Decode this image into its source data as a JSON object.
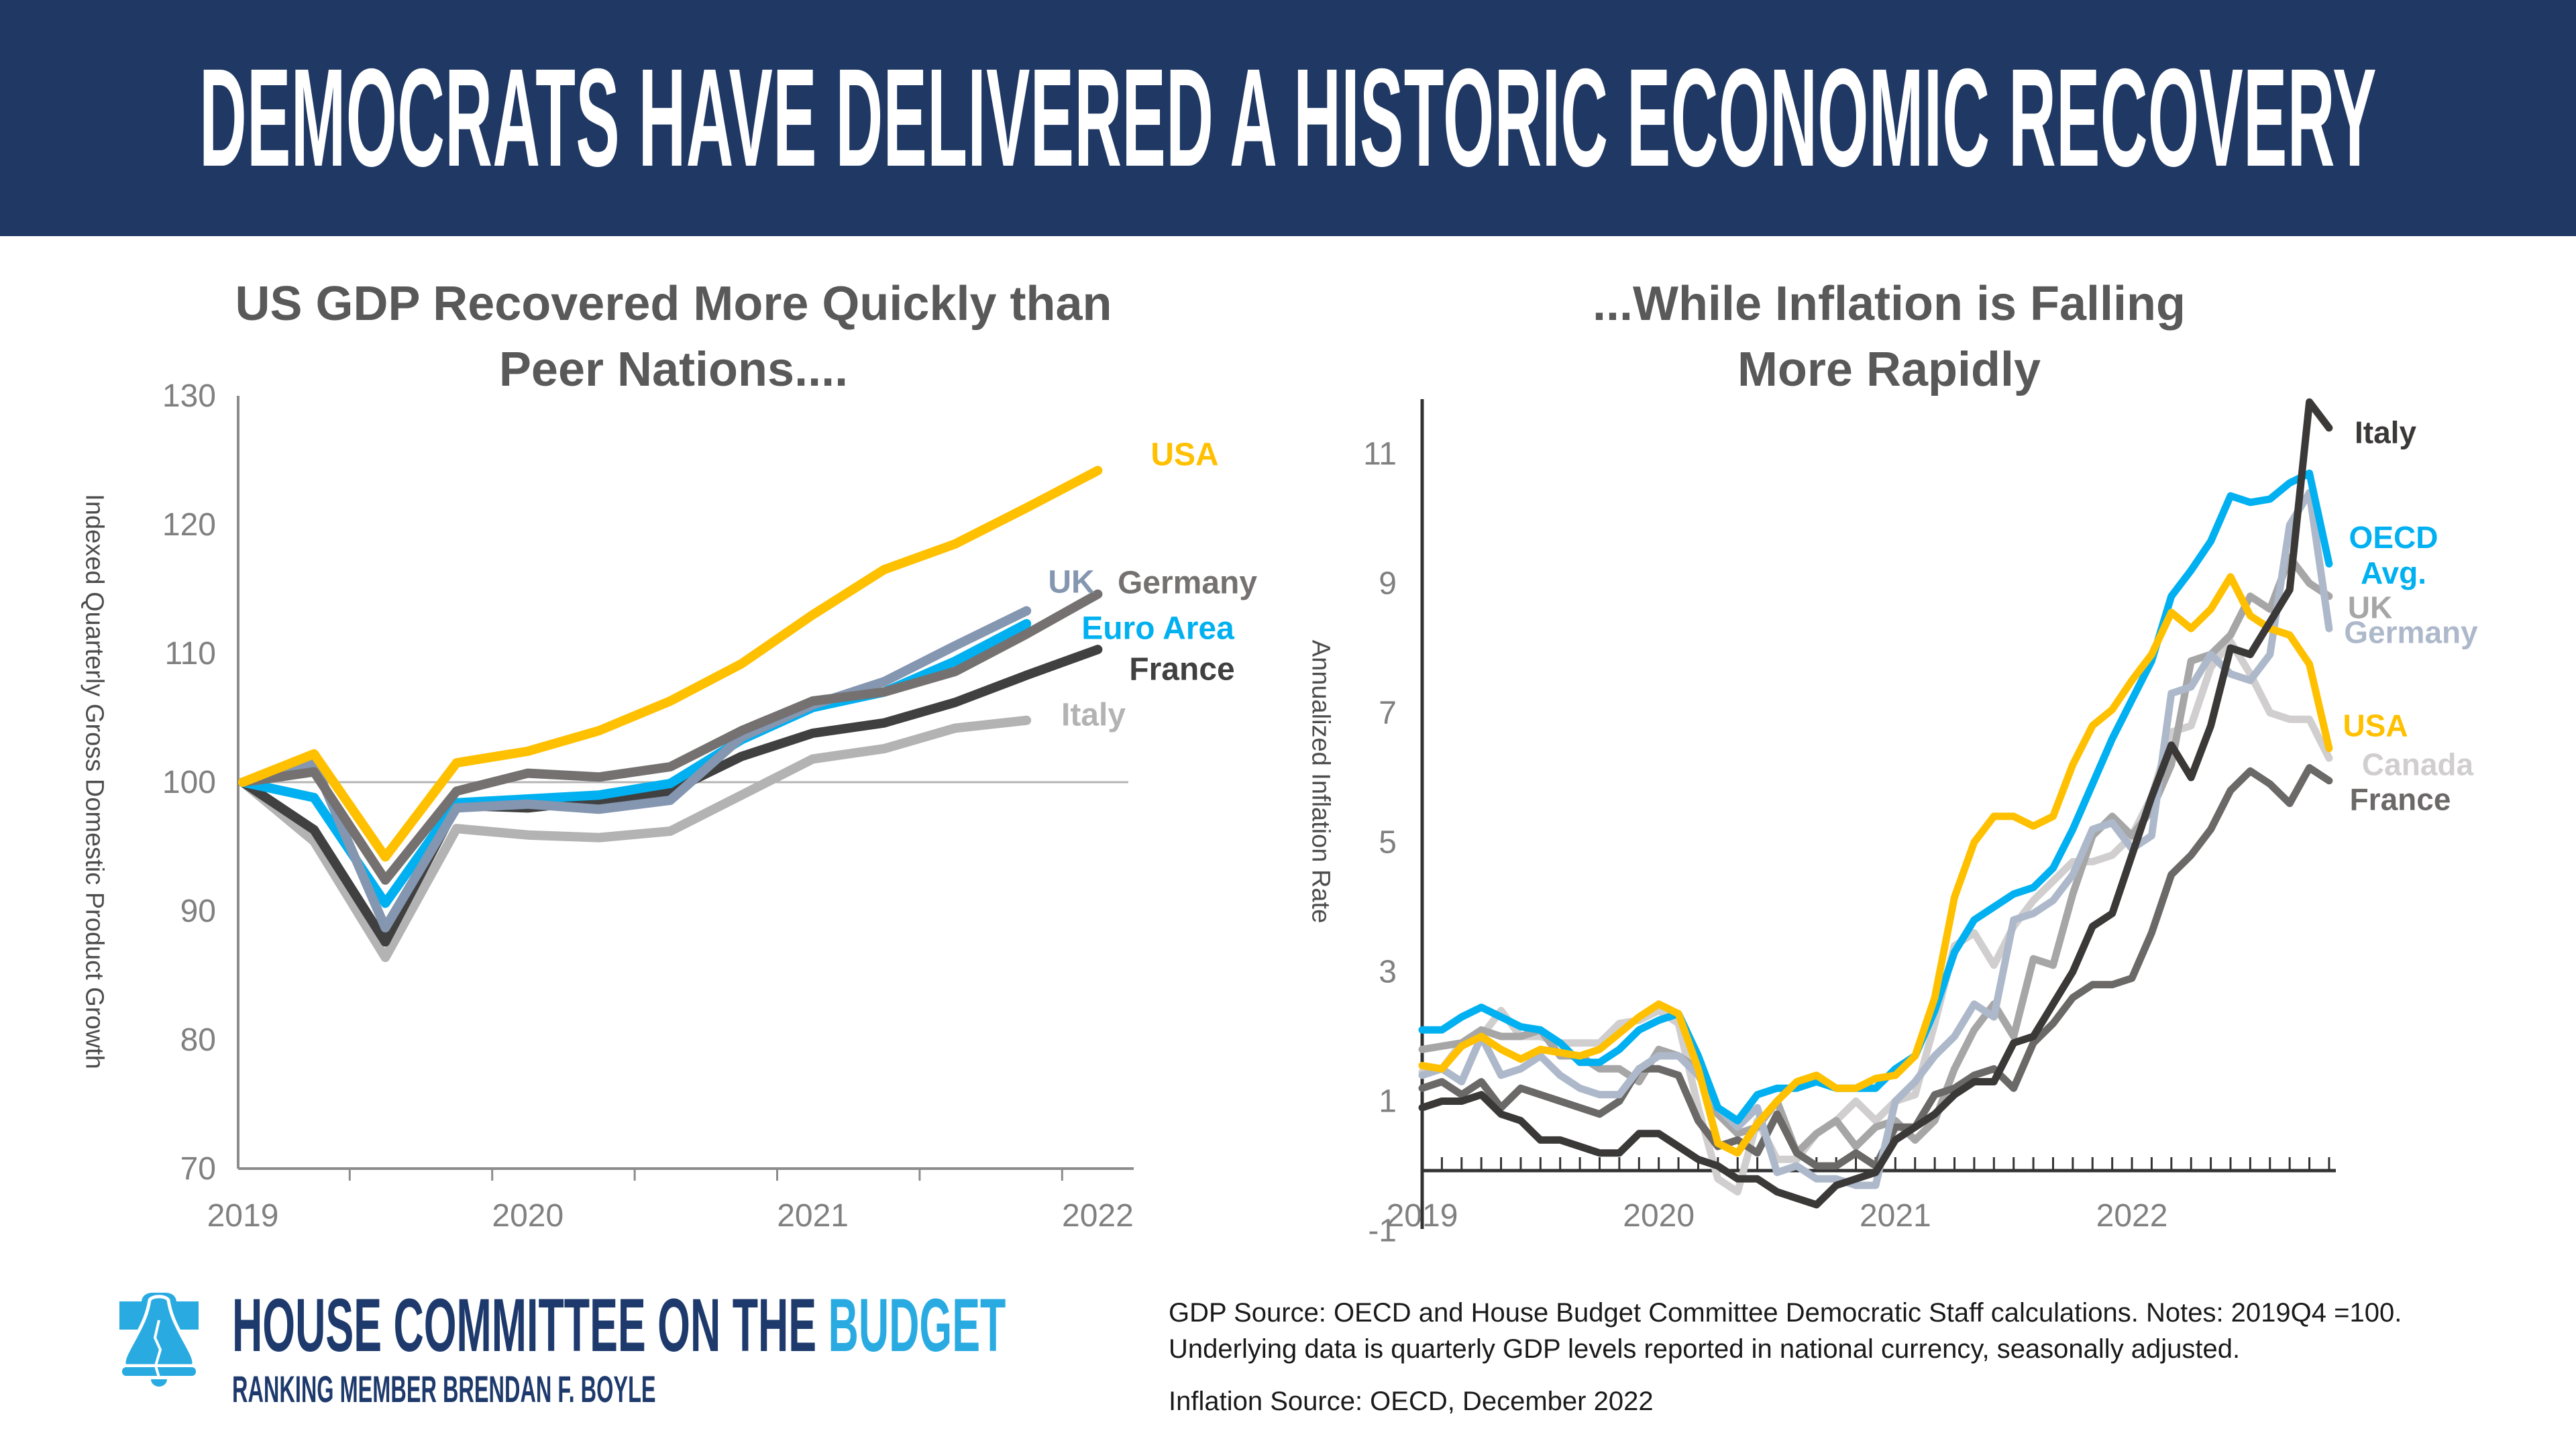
{
  "header": {
    "title": "DEMOCRATS HAVE DELIVERED A HISTORIC ECONOMIC RECOVERY"
  },
  "colors": {
    "banner_bg": "#1F3864",
    "accent_blue": "#29ABE2",
    "navy_text": "#1E3A6D",
    "title_gray": "#595959",
    "axis_gray_left_chart": "#8C8C8C",
    "axis_dark_right_chart": "#333333",
    "tick_label_gray": "#808080",
    "gridline_gray": "#B5B5B5"
  },
  "chart_data": [
    {
      "type": "line",
      "id": "gdp",
      "title": "US GDP Recovered More Quickly than Peer Nations....",
      "title_line1": "US GDP Recovered More Quickly than",
      "title_line2": "Peer Nations....",
      "xlabel": "",
      "ylabel": "Indexed Quarterly Gross Domestic Product Growth",
      "x_tick_labels": [
        "2019",
        "2020",
        "2021",
        "2022"
      ],
      "y_ticks": [
        70,
        80,
        90,
        100,
        110,
        120,
        130
      ],
      "ylim": [
        70,
        130
      ],
      "baseline": 100,
      "grid": "baseline-only",
      "legend_position": "end-of-line",
      "x": [
        "2019Q4",
        "2020Q1",
        "2020Q2",
        "2020Q3",
        "2020Q4",
        "2021Q1",
        "2021Q2",
        "2021Q3",
        "2021Q4",
        "2022Q1",
        "2022Q2",
        "2022Q3",
        "2022Q4"
      ],
      "series": [
        {
          "name": "Italy",
          "color": "#B3B3B3",
          "values": [
            100,
            95.4,
            86.4,
            96.4,
            95.9,
            95.7,
            96.2,
            99.0,
            101.8,
            102.6,
            104.2,
            104.8
          ]
        },
        {
          "name": "France",
          "color": "#404040",
          "values": [
            100,
            96.3,
            87.6,
            98.2,
            98.0,
            98.6,
            99.3,
            102.0,
            103.8,
            104.6,
            106.2,
            108.3,
            110.3
          ]
        },
        {
          "name": "Euro Area",
          "color": "#00B0F0",
          "values": [
            100,
            98.8,
            90.6,
            98.4,
            98.7,
            99.0,
            99.9,
            103.3,
            105.8,
            107.0,
            109.4,
            112.3
          ]
        },
        {
          "name": "UK",
          "color": "#8496B0",
          "values": [
            100,
            101.5,
            88.7,
            98.0,
            98.3,
            97.9,
            98.6,
            103.5,
            106.0,
            107.8,
            110.6,
            113.3
          ]
        },
        {
          "name": "Germany",
          "color": "#757171",
          "values": [
            100,
            100.8,
            92.4,
            99.3,
            100.7,
            100.4,
            101.2,
            104.0,
            106.3,
            107.0,
            108.6,
            111.5,
            114.6
          ]
        },
        {
          "name": "USA",
          "color": "#FFC000",
          "values": [
            100,
            102.2,
            94.2,
            101.5,
            102.4,
            104.0,
            106.3,
            109.2,
            113.0,
            116.5,
            118.5,
            121.3,
            124.2
          ]
        }
      ]
    },
    {
      "type": "line",
      "id": "inflation",
      "title": "...While Inflation is Falling More Rapidly",
      "title_line1": "...While Inflation is Falling",
      "title_line2": "More Rapidly",
      "xlabel": "",
      "ylabel": "Annualized Inflation Rate",
      "x_tick_labels": [
        "2019",
        "2020",
        "2021",
        "2022"
      ],
      "y_ticks": [
        -1,
        1,
        3,
        5,
        7,
        9,
        11
      ],
      "ylim": [
        -1,
        12
      ],
      "grid": "off",
      "legend_position": "end-of-line",
      "x": [
        "2019-01",
        "2019-02",
        "2019-03",
        "2019-04",
        "2019-05",
        "2019-06",
        "2019-07",
        "2019-08",
        "2019-09",
        "2019-10",
        "2019-11",
        "2019-12",
        "2020-01",
        "2020-02",
        "2020-03",
        "2020-04",
        "2020-05",
        "2020-06",
        "2020-07",
        "2020-08",
        "2020-09",
        "2020-10",
        "2020-11",
        "2020-12",
        "2021-01",
        "2021-02",
        "2021-03",
        "2021-04",
        "2021-05",
        "2021-06",
        "2021-07",
        "2021-08",
        "2021-09",
        "2021-10",
        "2021-11",
        "2021-12",
        "2022-01",
        "2022-02",
        "2022-03",
        "2022-04",
        "2022-05",
        "2022-06",
        "2022-07",
        "2022-08",
        "2022-09",
        "2022-10",
        "2022-11"
      ],
      "series": [
        {
          "name": "Canada",
          "color": "#D0CECE",
          "values": [
            1.45,
            1.5,
            1.9,
            2.0,
            2.4,
            2.0,
            2.0,
            1.9,
            1.9,
            1.9,
            2.2,
            2.25,
            2.4,
            2.2,
            0.9,
            -0.2,
            -0.4,
            0.7,
            0.1,
            0.1,
            0.5,
            0.7,
            1.0,
            0.7,
            1.0,
            1.1,
            2.2,
            3.4,
            3.6,
            3.1,
            3.7,
            4.1,
            4.4,
            4.7,
            4.7,
            4.8,
            5.1,
            5.7,
            6.7,
            6.8,
            7.7,
            8.1,
            7.6,
            7.0,
            6.9,
            6.9,
            6.3
          ]
        },
        {
          "name": "UK",
          "color": "#A6A6A6",
          "values": [
            1.8,
            1.85,
            1.9,
            2.1,
            2.0,
            2.0,
            2.1,
            1.7,
            1.7,
            1.5,
            1.5,
            1.3,
            1.8,
            1.7,
            1.5,
            0.8,
            0.5,
            0.6,
            1.0,
            0.2,
            0.5,
            0.7,
            0.3,
            0.6,
            0.7,
            0.4,
            0.7,
            1.5,
            2.1,
            2.5,
            2.0,
            3.2,
            3.1,
            4.2,
            5.1,
            5.4,
            5.1,
            5.5,
            6.2,
            7.8,
            7.9,
            8.2,
            8.8,
            8.6,
            9.4,
            9.0,
            8.8
          ]
        },
        {
          "name": "France",
          "color": "#6B6868",
          "values": [
            1.2,
            1.3,
            1.1,
            1.3,
            0.9,
            1.2,
            1.1,
            1.0,
            0.9,
            0.8,
            1.0,
            1.5,
            1.5,
            1.4,
            0.7,
            0.3,
            0.4,
            0.2,
            0.8,
            0.2,
            0.0,
            0.0,
            0.2,
            0.0,
            0.6,
            0.6,
            1.1,
            1.2,
            1.4,
            1.5,
            1.2,
            1.9,
            2.2,
            2.6,
            2.8,
            2.8,
            2.9,
            3.6,
            4.5,
            4.8,
            5.2,
            5.8,
            6.1,
            5.9,
            5.6,
            6.15,
            5.95
          ]
        },
        {
          "name": "Germany",
          "color": "#ADB9CA",
          "values": [
            1.4,
            1.5,
            1.3,
            2.0,
            1.4,
            1.5,
            1.7,
            1.4,
            1.2,
            1.1,
            1.1,
            1.5,
            1.7,
            1.7,
            1.4,
            0.9,
            0.6,
            0.9,
            -0.1,
            0.0,
            -0.2,
            -0.2,
            -0.3,
            -0.3,
            1.0,
            1.3,
            1.7,
            2.0,
            2.5,
            2.3,
            3.8,
            3.9,
            4.1,
            4.5,
            5.2,
            5.3,
            4.9,
            5.1,
            7.3,
            7.4,
            7.9,
            7.6,
            7.5,
            7.9,
            9.9,
            10.4,
            8.3
          ]
        },
        {
          "name": "OECD Avg.",
          "color": "#00B0F0",
          "label_lines": [
            "OECD",
            "Avg."
          ],
          "values": [
            2.1,
            2.1,
            2.3,
            2.45,
            2.3,
            2.15,
            2.1,
            1.9,
            1.6,
            1.6,
            1.8,
            2.1,
            2.25,
            2.35,
            1.7,
            0.9,
            0.7,
            1.1,
            1.2,
            1.2,
            1.3,
            1.2,
            1.2,
            1.2,
            1.5,
            1.7,
            2.4,
            3.3,
            3.8,
            4.0,
            4.2,
            4.3,
            4.6,
            5.2,
            5.9,
            6.6,
            7.2,
            7.8,
            8.8,
            9.2,
            9.65,
            10.35,
            10.25,
            10.3,
            10.55,
            10.7,
            9.3
          ]
        },
        {
          "name": "USA",
          "color": "#FFC000",
          "values": [
            1.55,
            1.5,
            1.85,
            2.0,
            1.8,
            1.65,
            1.8,
            1.75,
            1.7,
            1.8,
            2.05,
            2.3,
            2.5,
            2.35,
            1.5,
            0.35,
            0.2,
            0.65,
            1.0,
            1.3,
            1.4,
            1.2,
            1.2,
            1.35,
            1.4,
            1.7,
            2.6,
            4.15,
            5.0,
            5.4,
            5.4,
            5.25,
            5.4,
            6.2,
            6.8,
            7.05,
            7.5,
            7.9,
            8.55,
            8.3,
            8.6,
            9.1,
            8.5,
            8.3,
            8.2,
            7.75,
            6.45
          ]
        },
        {
          "name": "Italy",
          "color": "#3B3838",
          "values": [
            0.9,
            1.0,
            1.0,
            1.1,
            0.8,
            0.7,
            0.4,
            0.4,
            0.3,
            0.2,
            0.2,
            0.5,
            0.5,
            0.3,
            0.1,
            0.0,
            -0.2,
            -0.2,
            -0.4,
            -0.5,
            -0.6,
            -0.3,
            -0.2,
            -0.1,
            0.4,
            0.6,
            0.8,
            1.1,
            1.3,
            1.3,
            1.9,
            2.0,
            2.5,
            3.0,
            3.7,
            3.9,
            4.8,
            5.7,
            6.5,
            6.0,
            6.8,
            8.0,
            7.9,
            8.4,
            8.9,
            11.8,
            11.4
          ]
        }
      ]
    }
  ],
  "footer": {
    "logo": {
      "bell_icon": "liberty-bell-icon",
      "line1_dark": "HOUSE COMMITTEE ON THE ",
      "line1_accent": "BUDGET",
      "line2": "RANKING MEMBER BRENDAN F. BOYLE"
    },
    "sources": {
      "gdp_line1": "GDP Source: OECD and House Budget Committee Democratic Staff calculations. Notes: 2019Q4 =100.",
      "gdp_line2": "Underlying data is quarterly GDP levels reported in national currency, seasonally adjusted.",
      "inflation": "Inflation Source: OECD, December 2022"
    }
  }
}
